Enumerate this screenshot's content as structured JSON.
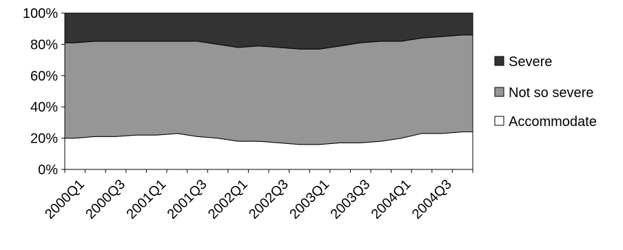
{
  "chart_data": {
    "type": "area",
    "stacked": "percent",
    "x": [
      "2000Q1",
      "2000Q2",
      "2000Q3",
      "2000Q4",
      "2001Q1",
      "2001Q2",
      "2001Q3",
      "2001Q4",
      "2002Q1",
      "2002Q2",
      "2002Q3",
      "2002Q4",
      "2003Q1",
      "2003Q2",
      "2003Q3",
      "2003Q4",
      "2004Q1",
      "2004Q2",
      "2004Q3",
      "2004Q4"
    ],
    "x_tick_labels": [
      "2000Q1",
      "2000Q3",
      "2001Q1",
      "2001Q3",
      "2002Q1",
      "2002Q3",
      "2003Q1",
      "2003Q3",
      "2004Q1",
      "2004Q3"
    ],
    "ylim": [
      0,
      100
    ],
    "y_ticks": [
      "0%",
      "20%",
      "40%",
      "60%",
      "80%",
      "100%"
    ],
    "series": [
      {
        "name": "Accommodate",
        "color": "#ffffff",
        "values": [
          20,
          21,
          21,
          22,
          22,
          23,
          21,
          20,
          18,
          18,
          17,
          16,
          16,
          17,
          17,
          18,
          20,
          23,
          23,
          24
        ]
      },
      {
        "name": "Not so severe",
        "color": "#969696",
        "values": [
          61,
          61,
          61,
          60,
          60,
          59,
          61,
          60,
          60,
          61,
          61,
          61,
          61,
          62,
          64,
          64,
          62,
          61,
          62,
          62
        ]
      },
      {
        "name": "Severe",
        "color": "#333333",
        "values": [
          19,
          18,
          18,
          18,
          18,
          18,
          18,
          20,
          22,
          21,
          22,
          23,
          23,
          21,
          19,
          18,
          18,
          16,
          15,
          14
        ]
      }
    ],
    "legend_position": "right",
    "grid": false,
    "legend": [
      "Severe",
      "Not so severe",
      "Accommodate"
    ]
  }
}
